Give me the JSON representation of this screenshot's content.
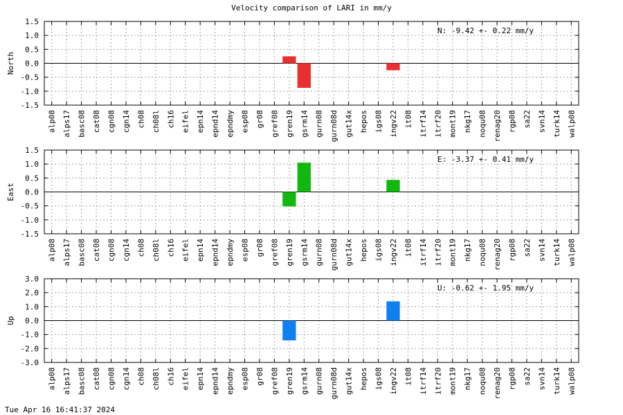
{
  "title": "Velocity comparison of LARI in mm/y",
  "footer": "Tue Apr 16 16:41:37 2024",
  "chart_data": [
    {
      "type": "bar",
      "ylabel": "North",
      "ylim": [
        -1.5,
        1.5
      ],
      "yticks": [
        "1.5",
        "1.0",
        "0.5",
        "0.0",
        "-0.5",
        "-1.0",
        "-1.5"
      ],
      "summary": "N:  -9.42 +-  0.22 mm/y",
      "color": "#e83030",
      "grid": true,
      "categories": [
        "alp08",
        "alps17",
        "basc08",
        "cat08",
        "cgn08",
        "cgn14",
        "ch08",
        "ch08l",
        "ch16",
        "eifel",
        "epn14",
        "epnd14",
        "epndmy",
        "esp08",
        "gr08",
        "gref08",
        "gren19",
        "gsrm14",
        "gurn08",
        "gurn08d",
        "gut14x",
        "hepos",
        "igs08",
        "ingv22",
        "it08",
        "itrf14",
        "itrf20",
        "mont19",
        "nkg17",
        "noqu08",
        "renag20",
        "rgp08",
        "sa22",
        "svn14",
        "turk14",
        "walp08"
      ],
      "values": [
        null,
        null,
        null,
        null,
        null,
        null,
        null,
        null,
        null,
        null,
        null,
        null,
        null,
        null,
        null,
        null,
        0.25,
        -0.88,
        null,
        null,
        null,
        null,
        null,
        -0.25,
        null,
        null,
        null,
        null,
        null,
        null,
        null,
        null,
        null,
        null,
        null,
        null
      ]
    },
    {
      "type": "bar",
      "ylabel": "East",
      "ylim": [
        -1.5,
        1.5
      ],
      "yticks": [
        "1.5",
        "1.0",
        "0.5",
        "0.0",
        "-0.5",
        "-1.0",
        "-1.5"
      ],
      "summary": "E:  -3.37 +-  0.41 mm/y",
      "color": "#10b810",
      "grid": true,
      "categories": [
        "alp08",
        "alps17",
        "basc08",
        "cat08",
        "cgn08",
        "cgn14",
        "ch08",
        "ch08l",
        "ch16",
        "eifel",
        "epn14",
        "epnd14",
        "epndmy",
        "esp08",
        "gr08",
        "gref08",
        "gren19",
        "gsrm14",
        "gurn08",
        "gurn08d",
        "gut14x",
        "hepos",
        "igs08",
        "ingv22",
        "it08",
        "itrf14",
        "itrf20",
        "mont19",
        "nkg17",
        "noqu08",
        "renag20",
        "rgp08",
        "sa22",
        "svn14",
        "turk14",
        "walp08"
      ],
      "values": [
        null,
        null,
        null,
        null,
        null,
        null,
        null,
        null,
        null,
        null,
        null,
        null,
        null,
        null,
        null,
        null,
        -0.52,
        1.05,
        null,
        null,
        null,
        null,
        null,
        0.43,
        null,
        null,
        null,
        null,
        null,
        null,
        null,
        null,
        null,
        null,
        null,
        null
      ]
    },
    {
      "type": "bar",
      "ylabel": "Up",
      "ylim": [
        -3.0,
        3.0
      ],
      "yticks": [
        "3.0",
        "2.0",
        "1.0",
        "0.0",
        "-1.0",
        "-2.0",
        "-3.0"
      ],
      "summary": "U:  -0.62 +-  1.95 mm/y",
      "color": "#1080f0",
      "grid": true,
      "categories": [
        "alp08",
        "alps17",
        "basc08",
        "cat08",
        "cgn08",
        "cgn14",
        "ch08",
        "ch08l",
        "ch16",
        "eifel",
        "epn14",
        "epnd14",
        "epndmy",
        "esp08",
        "gr08",
        "gref08",
        "gren19",
        "gsrm14",
        "gurn08",
        "gurn08d",
        "gut14x",
        "hepos",
        "igs08",
        "ingv22",
        "it08",
        "itrf14",
        "itrf20",
        "mont19",
        "nkg17",
        "noqu08",
        "renag20",
        "rgp08",
        "sa22",
        "svn14",
        "turk14",
        "walp08"
      ],
      "values": [
        null,
        null,
        null,
        null,
        null,
        null,
        null,
        null,
        null,
        null,
        null,
        null,
        null,
        null,
        null,
        null,
        -1.42,
        null,
        null,
        null,
        null,
        null,
        null,
        1.38,
        null,
        null,
        null,
        null,
        null,
        null,
        null,
        null,
        null,
        null,
        null,
        null
      ]
    }
  ]
}
